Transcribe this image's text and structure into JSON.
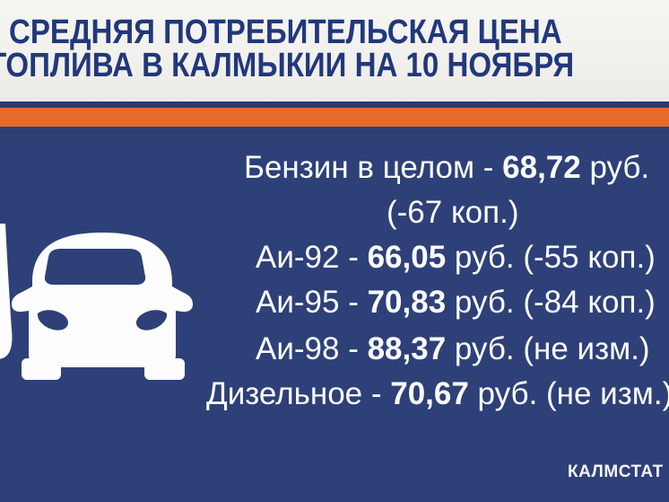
{
  "header": {
    "title_line1": "СРЕДНЯЯ ПОТРЕБИТЕЛЬСКАЯ ЦЕНА",
    "title_line2": "ТОПЛИВА В КАЛМЫКИИ НА 10 НОЯБРЯ"
  },
  "prices": {
    "lines": [
      {
        "pre": "Бензин в целом - ",
        "value": "68,72",
        "post": " руб."
      },
      {
        "pre": "(-67 коп.)",
        "value": "",
        "post": ""
      },
      {
        "pre": "Аи-92 - ",
        "value": "66,05",
        "post": " руб. (-55 коп.)"
      },
      {
        "pre": "Аи-95 - ",
        "value": "70,83",
        "post": " руб. (-84 коп.)"
      },
      {
        "pre": "Аи-98 - ",
        "value": "88,37",
        "post": " руб. (не изм.)"
      },
      {
        "pre": "Дизельное - ",
        "value": "70,67",
        "post": " руб. (не изм.)"
      }
    ]
  },
  "footer": {
    "source": "КАЛМСТАТ"
  },
  "icons": {
    "car": "car-front-icon",
    "pump": "fuel-pump-partial-icon"
  },
  "colors": {
    "header_bg": "#f3f2ee",
    "header_text": "#21387b",
    "orange_stripe": "#e66b2c",
    "navy_rule": "#2e3a6d",
    "body_bg": "#2e4078",
    "body_text": "#ffffff"
  }
}
